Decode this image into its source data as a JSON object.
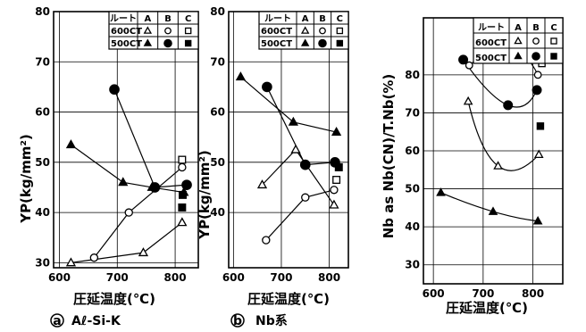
{
  "chart_data": [
    {
      "type": "scatter",
      "xlabel": "圧延温度(℃)",
      "ylabel": "YP(kg/mm²)",
      "caption_mark": "a",
      "caption": "Aℓ-Si-K",
      "xlim": [
        590,
        840
      ],
      "ylim": [
        29,
        80
      ],
      "xticks": [
        600,
        700,
        800
      ],
      "yticks": [
        30,
        40,
        50,
        60,
        70,
        80
      ],
      "legend": {
        "header": "ルート",
        "cols": [
          "A",
          "B",
          "C"
        ],
        "rows": [
          {
            "label": "600CT",
            "symbols": [
              "triangle-open",
              "circle-open",
              "square-open"
            ]
          },
          {
            "label": "500CT",
            "symbols": [
              "triangle-filled",
              "circle-filled",
              "square-filled"
            ]
          }
        ]
      },
      "series": [
        {
          "route": "A",
          "ct": "500CT",
          "marker": "triangle-filled",
          "connect": "line",
          "points": [
            [
              620,
              53.5
            ],
            [
              710,
              46
            ],
            [
              760,
              45
            ],
            [
              815,
              44
            ]
          ]
        },
        {
          "route": "B",
          "ct": "500CT",
          "marker": "circle-filled",
          "connect": "line",
          "points": [
            [
              695,
              64.5
            ],
            [
              765,
              45
            ],
            [
              820,
              45.5
            ]
          ]
        },
        {
          "route": "C",
          "ct": "500CT",
          "marker": "square-filled",
          "connect": "none",
          "points": [
            [
              812,
              41
            ],
            [
              813,
              43.5
            ]
          ]
        },
        {
          "route": "A",
          "ct": "600CT",
          "marker": "triangle-open",
          "connect": "line",
          "points": [
            [
              620,
              30
            ],
            [
              745,
              32
            ],
            [
              812,
              38
            ]
          ]
        },
        {
          "route": "B",
          "ct": "600CT",
          "marker": "circle-open",
          "connect": "line",
          "points": [
            [
              660,
              31
            ],
            [
              720,
              40
            ],
            [
              812,
              49
            ]
          ]
        },
        {
          "route": "C",
          "ct": "600CT",
          "marker": "square-open",
          "connect": "none",
          "points": [
            [
              812,
              50.5
            ]
          ]
        }
      ]
    },
    {
      "type": "scatter",
      "xlabel": "圧延温度(℃)",
      "ylabel": "YP(kg/mm²)",
      "caption_mark": "b",
      "caption": "Nb系",
      "xlim": [
        590,
        840
      ],
      "ylim": [
        29,
        80
      ],
      "xticks": [
        600,
        700,
        800
      ],
      "yticks": [
        40,
        50,
        60,
        70,
        80
      ],
      "legend": {
        "header": "ルート",
        "cols": [
          "A",
          "B",
          "C"
        ],
        "rows": [
          {
            "label": "600CT",
            "symbols": [
              "triangle-open",
              "circle-open",
              "square-open"
            ]
          },
          {
            "label": "500CT",
            "symbols": [
              "triangle-filled",
              "circle-filled",
              "square-filled"
            ]
          }
        ]
      },
      "series": [
        {
          "route": "A",
          "ct": "500CT",
          "marker": "triangle-filled",
          "connect": "line",
          "points": [
            [
              615,
              67
            ],
            [
              725,
              58
            ],
            [
              815,
              56
            ]
          ]
        },
        {
          "route": "B",
          "ct": "500CT",
          "marker": "circle-filled",
          "connect": "line",
          "points": [
            [
              670,
              65
            ],
            [
              750,
              49.5
            ],
            [
              812,
              50
            ]
          ]
        },
        {
          "route": "C",
          "ct": "500CT",
          "marker": "square-filled",
          "connect": "none",
          "points": [
            [
              820,
              49
            ]
          ]
        },
        {
          "route": "A",
          "ct": "600CT",
          "marker": "triangle-open",
          "connect": "line",
          "points": [
            [
              660,
              45.5
            ],
            [
              730,
              52.5
            ],
            [
              810,
              41.5
            ]
          ]
        },
        {
          "route": "B",
          "ct": "600CT",
          "marker": "circle-open",
          "connect": "line",
          "points": [
            [
              668,
              34.5
            ],
            [
              750,
              43
            ],
            [
              810,
              44.5
            ]
          ]
        },
        {
          "route": "C",
          "ct": "600CT",
          "marker": "square-open",
          "connect": "none",
          "points": [
            [
              815,
              46.5
            ]
          ]
        }
      ]
    },
    {
      "type": "scatter",
      "xlabel": "圧延温度(℃)",
      "ylabel": "Nb as Nb(CN)/T.Nb(%)",
      "xlim": [
        580,
        860
      ],
      "ylim": [
        25,
        95
      ],
      "xticks": [
        600,
        700,
        800
      ],
      "yticks": [
        30,
        40,
        50,
        60,
        70,
        80
      ],
      "legend": {
        "header": "ルート",
        "cols": [
          "A",
          "B",
          "C"
        ],
        "rows": [
          {
            "label": "600CT",
            "symbols": [
              "triangle-open",
              "circle-open",
              "square-open"
            ]
          },
          {
            "label": "500CT",
            "symbols": [
              "triangle-filled",
              "circle-filled",
              "square-filled"
            ]
          }
        ]
      },
      "series": [
        {
          "route": "A",
          "ct": "500CT",
          "marker": "triangle-filled",
          "connect": "curve",
          "points": [
            [
              615,
              49
            ],
            [
              720,
              44
            ],
            [
              810,
              41.5
            ]
          ]
        },
        {
          "route": "B",
          "ct": "500CT",
          "marker": "circle-filled",
          "connect": "curve",
          "points": [
            [
              660,
              84
            ],
            [
              750,
              72
            ],
            [
              808,
              76
            ]
          ]
        },
        {
          "route": "C",
          "ct": "500CT",
          "marker": "square-filled",
          "connect": "none",
          "points": [
            [
              815,
              66.5
            ]
          ]
        },
        {
          "route": "A",
          "ct": "600CT",
          "marker": "triangle-open",
          "connect": "curve",
          "points": [
            [
              670,
              73
            ],
            [
              730,
              56
            ],
            [
              812,
              59
            ]
          ]
        },
        {
          "route": "B",
          "ct": "600CT",
          "marker": "circle-open",
          "connect": "curve",
          "points": [
            [
              672,
              82.5
            ],
            [
              752,
              87
            ],
            [
              810,
              80
            ]
          ]
        },
        {
          "route": "C",
          "ct": "600CT",
          "marker": "square-open",
          "connect": "none",
          "points": [
            [
              818,
              83
            ]
          ]
        }
      ]
    }
  ]
}
